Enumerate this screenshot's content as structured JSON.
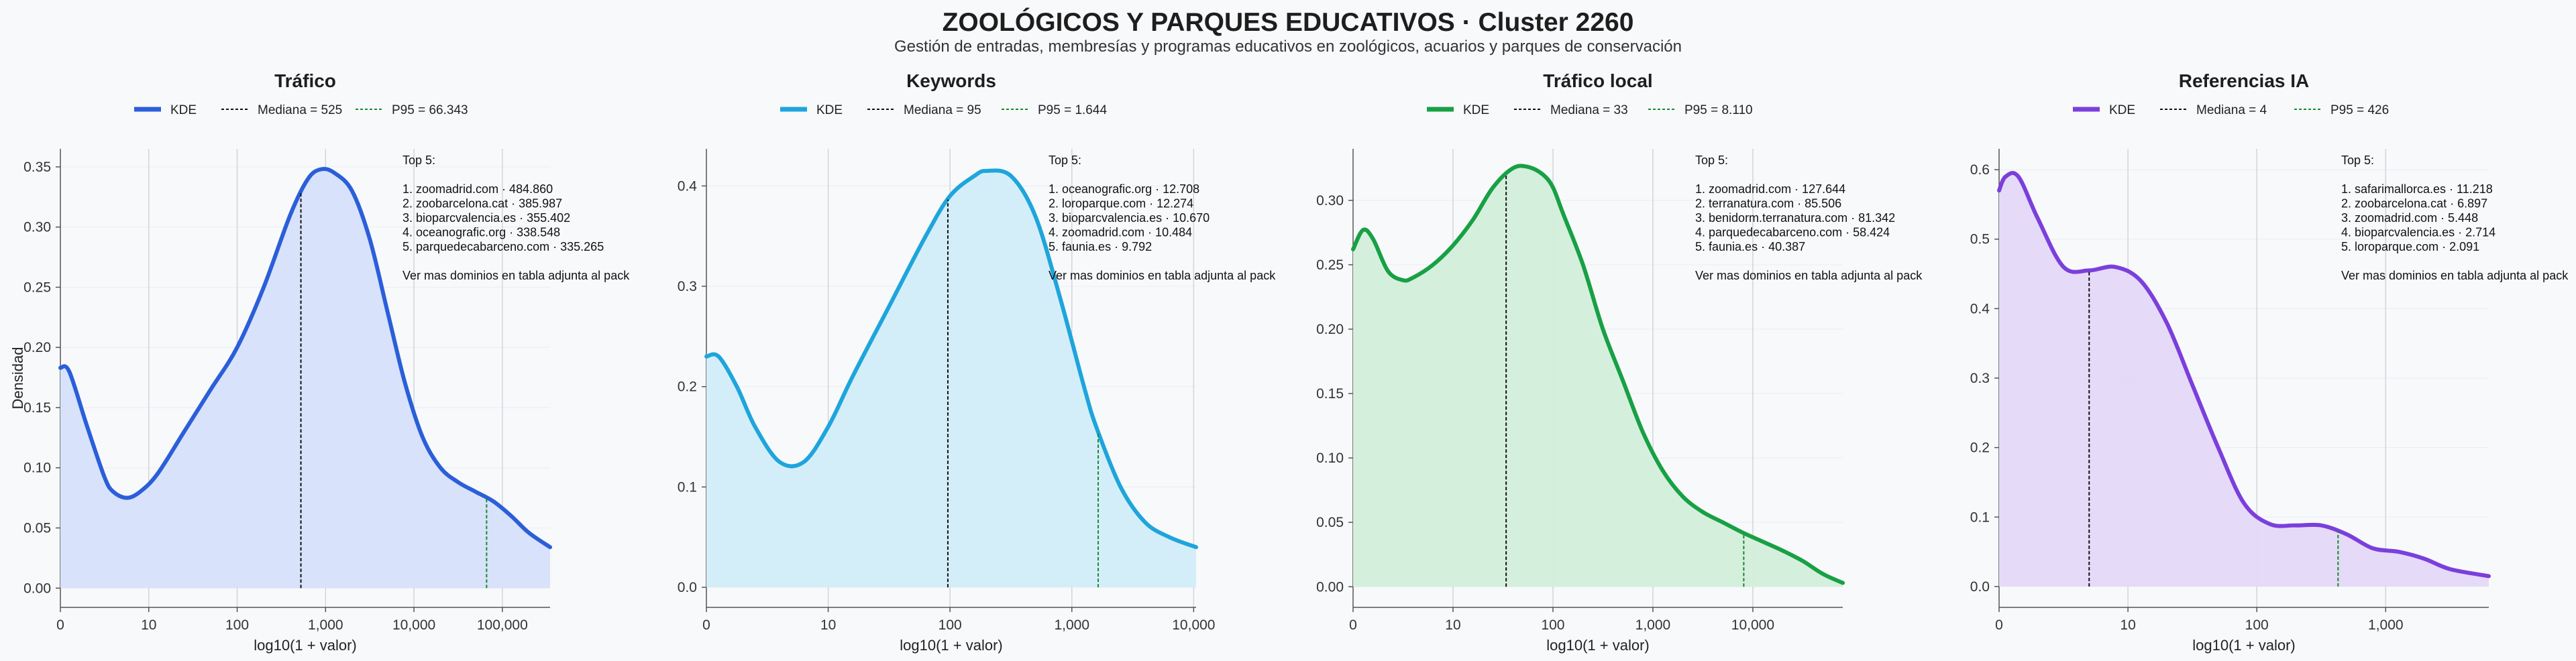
{
  "title": "ZOOLÓGICOS Y PARQUES EDUCATIVOS · Cluster 2260",
  "subtitle": "Gestión de entradas, membresías y programas educativos en zoológicos, acuarios y parques de conservación",
  "y_label": "Densidad",
  "chart_data": [
    {
      "type": "area",
      "title": "Tráfico",
      "color": "#2b5fd9",
      "fill": "#d6e0fa",
      "xlabel": "log10(1 + valor)",
      "ylabel": "Densidad",
      "x_scale": "log10(1+x)",
      "xlim": [
        0,
        5.54
      ],
      "ylim": [
        -0.016,
        0.365
      ],
      "x_ticks": [
        0,
        1,
        2,
        3,
        4,
        5
      ],
      "x_tick_labels": [
        "0",
        "10",
        "100",
        "1,000",
        "10,000",
        "100,000"
      ],
      "y_ticks": [
        0,
        0.05,
        0.1,
        0.15,
        0.2,
        0.25,
        0.3,
        0.35
      ],
      "y_tick_labels": [
        "0.00",
        "0.05",
        "0.10",
        "0.15",
        "0.20",
        "0.25",
        "0.30",
        "0.35"
      ],
      "legend": [
        "KDE",
        "Mediana = 525",
        "P95 = 66.343"
      ],
      "median": 525,
      "p95": 66343,
      "x": [
        0,
        0.1,
        0.3,
        0.5,
        0.6,
        0.75,
        0.9,
        1.1,
        1.4,
        1.7,
        2.0,
        2.3,
        2.6,
        2.8,
        2.95,
        3.1,
        3.3,
        3.5,
        3.7,
        3.9,
        4.1,
        4.3,
        4.5,
        4.7,
        4.9,
        5.1,
        5.3,
        5.54
      ],
      "y": [
        0.183,
        0.18,
        0.135,
        0.092,
        0.08,
        0.075,
        0.08,
        0.095,
        0.13,
        0.165,
        0.2,
        0.25,
        0.31,
        0.34,
        0.348,
        0.345,
        0.33,
        0.29,
        0.23,
        0.17,
        0.125,
        0.1,
        0.088,
        0.08,
        0.072,
        0.06,
        0.046,
        0.034
      ],
      "annotation": [
        "Top 5:",
        "",
        "1. zoomadrid.com · 484.860",
        "2. zoobarcelona.cat · 385.987",
        "3. bioparcvalencia.es · 355.402",
        "4. oceanografic.org · 338.548",
        "5. parquedecabarceno.com · 335.265",
        "",
        "Ver mas dominios en tabla adjunta al pack"
      ]
    },
    {
      "type": "area",
      "title": "Keywords",
      "color": "#1ea5dc",
      "fill": "#d2edf9",
      "xlabel": "log10(1 + valor)",
      "ylabel": "",
      "x_scale": "log10(1+x)",
      "xlim": [
        0,
        4.02
      ],
      "ylim": [
        -0.02,
        0.437
      ],
      "x_ticks": [
        0,
        1,
        2,
        3,
        4
      ],
      "x_tick_labels": [
        "0",
        "10",
        "100",
        "1,000",
        "10,000"
      ],
      "y_ticks": [
        0,
        0.1,
        0.2,
        0.3,
        0.4
      ],
      "y_tick_labels": [
        "0.0",
        "0.1",
        "0.2",
        "0.3",
        "0.4"
      ],
      "legend": [
        "KDE",
        "Mediana = 95",
        "P95 = 1.644"
      ],
      "median": 95,
      "p95": 1644,
      "x": [
        0,
        0.1,
        0.25,
        0.4,
        0.6,
        0.8,
        1.0,
        1.2,
        1.5,
        1.8,
        2.0,
        2.2,
        2.3,
        2.5,
        2.7,
        2.9,
        3.1,
        3.2,
        3.4,
        3.6,
        3.8,
        4.02
      ],
      "y": [
        0.23,
        0.23,
        0.2,
        0.16,
        0.125,
        0.125,
        0.16,
        0.21,
        0.28,
        0.35,
        0.39,
        0.41,
        0.415,
        0.41,
        0.37,
        0.29,
        0.2,
        0.16,
        0.1,
        0.065,
        0.05,
        0.04
      ],
      "annotation": [
        "Top 5:",
        "",
        "1. oceanografic.org · 12.708",
        "2. loroparque.com · 12.274",
        "3. bioparcvalencia.es · 10.670",
        "4. zoomadrid.com · 10.484",
        "5. faunia.es · 9.792",
        "",
        "Ver mas dominios en tabla adjunta al pack"
      ]
    },
    {
      "type": "area",
      "title": "Tráfico local",
      "color": "#18a045",
      "fill": "#d3eedb",
      "xlabel": "log10(1 + valor)",
      "ylabel": "",
      "x_scale": "log10(1+x)",
      "xlim": [
        0,
        4.9
      ],
      "ylim": [
        -0.016,
        0.34
      ],
      "x_ticks": [
        0,
        1,
        2,
        3,
        4
      ],
      "x_tick_labels": [
        "0",
        "10",
        "100",
        "1,000",
        "10,000"
      ],
      "y_ticks": [
        0,
        0.05,
        0.1,
        0.15,
        0.2,
        0.25,
        0.3
      ],
      "y_tick_labels": [
        "0.00",
        "0.05",
        "0.10",
        "0.15",
        "0.20",
        "0.25",
        "0.30"
      ],
      "legend": [
        "KDE",
        "Mediana = 33",
        "P95 = 8.110"
      ],
      "median": 33,
      "p95": 8110,
      "x": [
        0,
        0.1,
        0.2,
        0.35,
        0.5,
        0.6,
        0.8,
        1.0,
        1.2,
        1.4,
        1.6,
        1.75,
        1.9,
        2.0,
        2.1,
        2.3,
        2.5,
        2.7,
        2.9,
        3.1,
        3.3,
        3.5,
        3.7,
        3.9,
        4.1,
        4.3,
        4.5,
        4.7,
        4.9
      ],
      "y": [
        0.262,
        0.277,
        0.27,
        0.245,
        0.238,
        0.24,
        0.25,
        0.265,
        0.285,
        0.31,
        0.325,
        0.326,
        0.32,
        0.31,
        0.29,
        0.25,
        0.2,
        0.16,
        0.12,
        0.09,
        0.07,
        0.058,
        0.05,
        0.042,
        0.035,
        0.028,
        0.02,
        0.01,
        0.003
      ],
      "annotation": [
        "Top 5:",
        "",
        "1. zoomadrid.com · 127.644",
        "2. terranatura.com · 85.506",
        "3. benidorm.terranatura.com · 81.342",
        "4. parquedecabarceno.com · 58.424",
        "5. faunia.es · 40.387",
        "",
        "Ver mas dominios en tabla adjunta al pack"
      ]
    },
    {
      "type": "area",
      "title": "Referencias IA",
      "color": "#7b3fdc",
      "fill": "#e4d8f8",
      "xlabel": "log10(1 + valor)",
      "ylabel": "",
      "x_scale": "log10(1+x)",
      "xlim": [
        0,
        3.8
      ],
      "ylim": [
        -0.03,
        0.63
      ],
      "x_ticks": [
        0,
        1,
        2,
        3
      ],
      "x_tick_labels": [
        "0",
        "10",
        "100",
        "1,000"
      ],
      "y_ticks": [
        0,
        0.1,
        0.2,
        0.3,
        0.4,
        0.5,
        0.6
      ],
      "y_tick_labels": [
        "0.0",
        "0.1",
        "0.2",
        "0.3",
        "0.4",
        "0.5",
        "0.6"
      ],
      "legend": [
        "KDE",
        "Mediana = 4",
        "P95 = 426"
      ],
      "median": 4,
      "p95": 426,
      "x": [
        0,
        0.05,
        0.15,
        0.3,
        0.5,
        0.7,
        0.9,
        1.1,
        1.3,
        1.5,
        1.7,
        1.9,
        2.1,
        2.3,
        2.5,
        2.7,
        2.9,
        3.1,
        3.3,
        3.5,
        3.8
      ],
      "y": [
        0.57,
        0.59,
        0.59,
        0.53,
        0.46,
        0.455,
        0.46,
        0.44,
        0.38,
        0.29,
        0.2,
        0.12,
        0.09,
        0.088,
        0.088,
        0.075,
        0.055,
        0.05,
        0.04,
        0.025,
        0.015
      ],
      "annotation": [
        "Top 5:",
        "",
        "1. safarimallorca.es · 11.218",
        "2. zoobarcelona.cat · 6.897",
        "3. zoomadrid.com · 5.448",
        "4. bioparcvalencia.es · 2.714",
        "5. loroparque.com · 2.091",
        "",
        "Ver mas dominios en tabla adjunta al pack"
      ]
    }
  ]
}
